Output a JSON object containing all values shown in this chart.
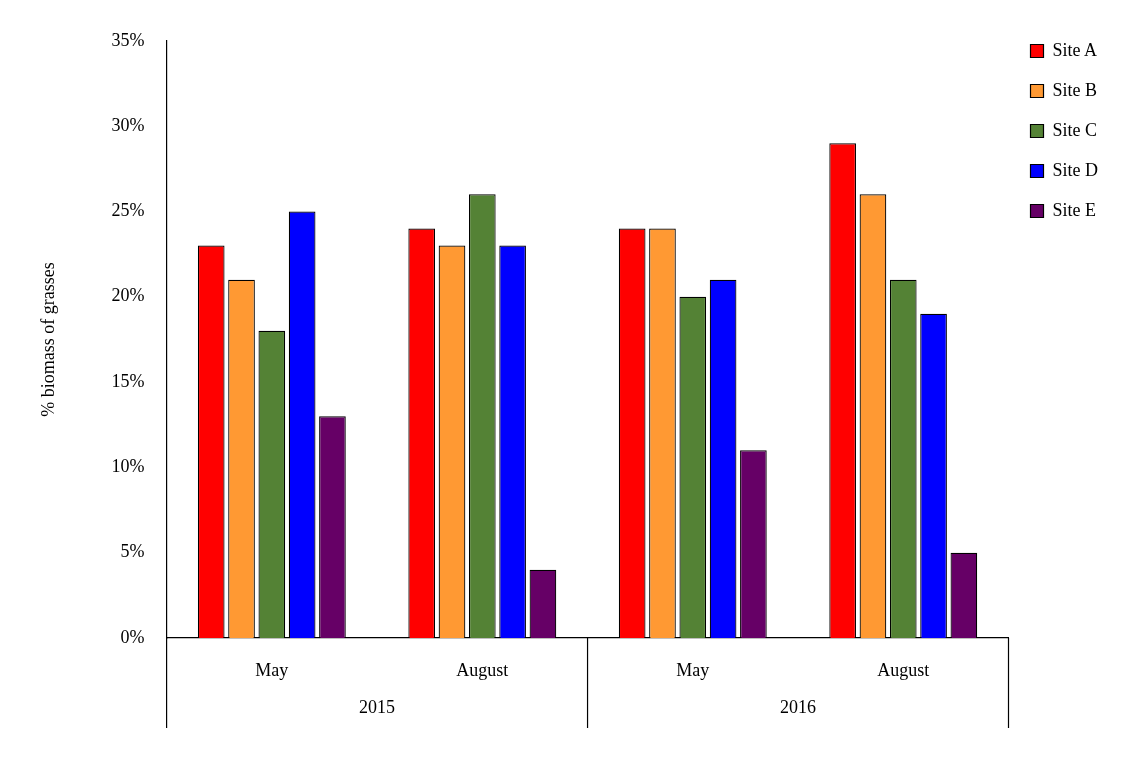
{
  "chart_data": {
    "type": "bar",
    "ylabel": "% biomass of grasses",
    "categories": [
      "May",
      "August",
      "May",
      "August"
    ],
    "annotations": [
      "2015",
      "2016"
    ],
    "series": [
      {
        "name": "Site A",
        "color": "#ff0000",
        "values": [
          23,
          24,
          24,
          29
        ]
      },
      {
        "name": "Site B",
        "color": "#ff9933",
        "values": [
          21,
          23,
          24,
          26
        ]
      },
      {
        "name": "Site C",
        "color": "#548235",
        "values": [
          18,
          26,
          20,
          21
        ]
      },
      {
        "name": "Site D",
        "color": "#0000ff",
        "values": [
          25,
          23,
          21,
          19
        ]
      },
      {
        "name": "Site E",
        "color": "#660066",
        "values": [
          13,
          4,
          11,
          5
        ]
      }
    ],
    "ylim": [
      0,
      35
    ],
    "yticks": [
      {
        "value": 0,
        "label": "0%"
      },
      {
        "value": 5,
        "label": "5%"
      },
      {
        "value": 10,
        "label": "10%"
      },
      {
        "value": 15,
        "label": "15%"
      },
      {
        "value": 20,
        "label": "20%"
      },
      {
        "value": 25,
        "label": "25%"
      },
      {
        "value": 30,
        "label": "30%"
      },
      {
        "value": 35,
        "label": "35%"
      }
    ],
    "grid": false,
    "legend": "top right"
  }
}
